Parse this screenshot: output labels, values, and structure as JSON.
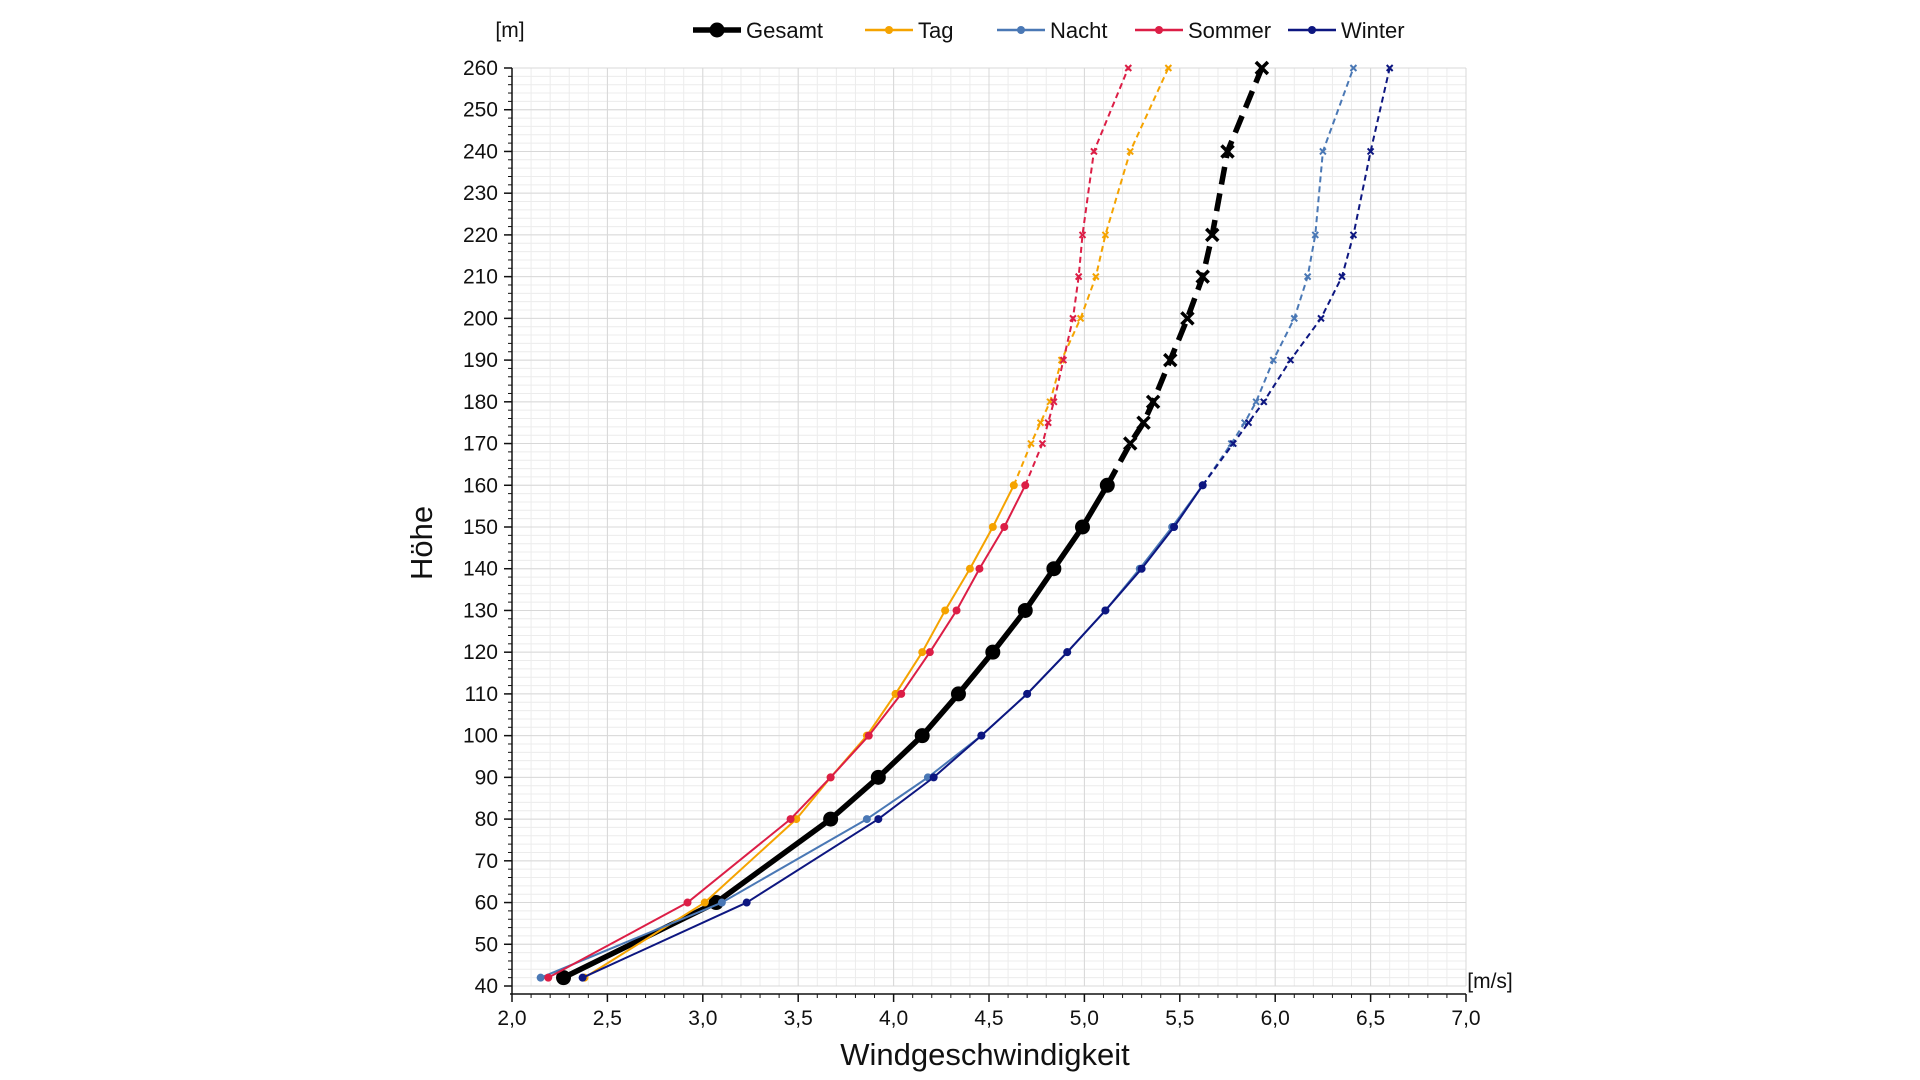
{
  "chart_data": {
    "type": "line",
    "xlabel": "Windgeschwindigkeit",
    "ylabel": "Höhe",
    "x_unit": "[m/s]",
    "y_unit": "[m]",
    "xlim": [
      2.0,
      7.0
    ],
    "ylim": [
      40,
      260
    ],
    "x_ticks": [
      "2,0",
      "2,5",
      "3,0",
      "3,5",
      "4,0",
      "4,5",
      "5,0",
      "5,5",
      "6,0",
      "6,5",
      "7,0"
    ],
    "y_ticks": [
      "40",
      "50",
      "60",
      "70",
      "80",
      "90",
      "100",
      "110",
      "120",
      "130",
      "140",
      "150",
      "160",
      "170",
      "180",
      "190",
      "200",
      "210",
      "220",
      "230",
      "240",
      "250",
      "260"
    ],
    "grid": true,
    "legend_position": "top",
    "measured_up_to": 160,
    "extrapolated_marker": "x",
    "series": [
      {
        "name": "Gesamt",
        "color": "#000000",
        "heights": [
          42,
          60,
          80,
          90,
          100,
          110,
          120,
          130,
          140,
          150,
          160,
          170,
          175,
          180,
          190,
          200,
          210,
          220,
          240,
          260
        ],
        "values": [
          2.27,
          3.07,
          3.67,
          3.92,
          4.15,
          4.34,
          4.52,
          4.69,
          4.84,
          4.99,
          5.12,
          5.24,
          5.31,
          5.36,
          5.45,
          5.54,
          5.62,
          5.67,
          5.75,
          5.93
        ]
      },
      {
        "name": "Tag",
        "color": "#f5a300",
        "heights": [
          42,
          60,
          80,
          90,
          100,
          110,
          120,
          130,
          140,
          150,
          160,
          170,
          175,
          180,
          190,
          200,
          210,
          220,
          240,
          260
        ],
        "values": [
          2.38,
          3.01,
          3.49,
          3.67,
          3.86,
          4.01,
          4.15,
          4.27,
          4.4,
          4.52,
          4.63,
          4.72,
          4.77,
          4.82,
          4.88,
          4.98,
          5.06,
          5.11,
          5.24,
          5.44
        ]
      },
      {
        "name": "Nacht",
        "color": "#4a78b5",
        "heights": [
          42,
          60,
          80,
          90,
          100,
          110,
          120,
          130,
          140,
          150,
          160,
          170,
          175,
          180,
          190,
          200,
          210,
          220,
          240,
          260
        ],
        "values": [
          2.15,
          3.1,
          3.86,
          4.18,
          4.46,
          4.7,
          4.91,
          5.11,
          5.29,
          5.46,
          5.62,
          5.77,
          5.84,
          5.9,
          5.99,
          6.1,
          6.17,
          6.21,
          6.25,
          6.41
        ]
      },
      {
        "name": "Sommer",
        "color": "#dc1e46",
        "heights": [
          42,
          60,
          80,
          90,
          100,
          110,
          120,
          130,
          140,
          150,
          160,
          170,
          175,
          180,
          190,
          200,
          210,
          220,
          240,
          260
        ],
        "values": [
          2.19,
          2.92,
          3.46,
          3.67,
          3.87,
          4.04,
          4.19,
          4.33,
          4.45,
          4.58,
          4.69,
          4.78,
          4.81,
          4.84,
          4.89,
          4.94,
          4.97,
          4.99,
          5.05,
          5.23
        ]
      },
      {
        "name": "Winter",
        "color": "#0d1680",
        "heights": [
          42,
          60,
          80,
          90,
          100,
          110,
          120,
          130,
          140,
          150,
          160,
          170,
          175,
          180,
          190,
          200,
          210,
          220,
          240,
          260
        ],
        "values": [
          2.37,
          3.23,
          3.92,
          4.21,
          4.46,
          4.7,
          4.91,
          5.11,
          5.3,
          5.47,
          5.62,
          5.78,
          5.86,
          5.94,
          6.08,
          6.24,
          6.35,
          6.41,
          6.5,
          6.6
        ]
      }
    ]
  }
}
